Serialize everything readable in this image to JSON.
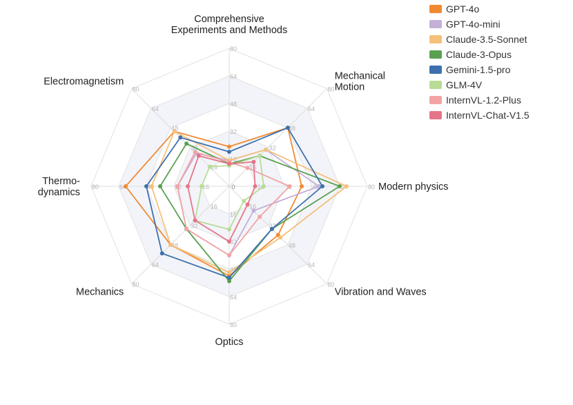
{
  "chart_data": {
    "type": "radar",
    "axes": [
      "Comprehensive\nExperiments and Methods",
      "Mechanical\nMotion",
      "Modern physics",
      "Vibration and Waves",
      "Optics",
      "Mechanics",
      "Thermo-\ndynamics",
      "Electromagnetism"
    ],
    "ticks": [
      0,
      16,
      32,
      48,
      64,
      80
    ],
    "range": [
      0,
      80
    ],
    "grid": true,
    "legend_position": "top-right",
    "series": [
      {
        "name": "GPT-4o",
        "color": "#f08a32",
        "values": [
          23,
          48,
          42,
          40,
          52,
          48,
          60,
          45
        ]
      },
      {
        "name": "GPT-4o-mini",
        "color": "#c3b0d8",
        "values": [
          15,
          30,
          52,
          20,
          40,
          35,
          30,
          27
        ]
      },
      {
        "name": "Claude-3.5-Sonnet",
        "color": "#f5c07a",
        "values": [
          15,
          30,
          68,
          42,
          50,
          48,
          45,
          45
        ]
      },
      {
        "name": "Claude-3-Opus",
        "color": "#59a14f",
        "values": [
          13,
          25,
          64,
          35,
          55,
          35,
          40,
          35
        ]
      },
      {
        "name": "Gemini-1.5-pro",
        "color": "#3d71ad",
        "values": [
          20,
          48,
          54,
          35,
          53,
          55,
          48,
          40
        ]
      },
      {
        "name": "GLM-4V",
        "color": "#b8dc96",
        "values": [
          12,
          25,
          20,
          12,
          25,
          28,
          16,
          16
        ]
      },
      {
        "name": "InternVL-1.2-Plus",
        "color": "#f2a3a3",
        "values": [
          14,
          15,
          35,
          25,
          40,
          35,
          30,
          28
        ]
      },
      {
        "name": "InternVL-Chat-V1.5",
        "color": "#e47588",
        "values": [
          13,
          20,
          15,
          15,
          32,
          28,
          24,
          25
        ]
      }
    ]
  }
}
